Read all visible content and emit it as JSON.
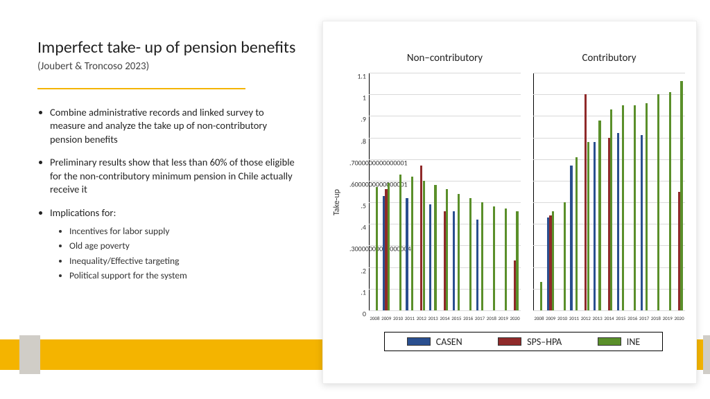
{
  "title": "Imperfect take- up of pension benefits",
  "subtitle": "(Joubert & Troncoso 2023)",
  "accent_color": "#f4b400",
  "bullets": [
    "Combine administrative records and linked survey to measure and analyze the take up of non-contributory pension benefits",
    "Preliminary results show that less than 60% of those eligible for the non-contributory minimum pension in Chile actually receive it",
    "Implications for:"
  ],
  "sub_bullets": [
    "Incentives for labor supply",
    "Old age poverty",
    "Inequality/Effective targeting",
    "Political support for the system"
  ],
  "chart": {
    "type": "grouped-bar-panels",
    "ylabel": "Take-up",
    "panel_titles": [
      "Non–contributory",
      "Contributory"
    ],
    "years": [
      "2008",
      "2009",
      "2010",
      "2011",
      "2012",
      "2013",
      "2014",
      "2015",
      "2016",
      "2017",
      "2018",
      "2019",
      "2020"
    ],
    "series": [
      {
        "name": "CASEN",
        "color": "#2a4f8f"
      },
      {
        "name": "SPS–HPA",
        "color": "#8f2a2a"
      },
      {
        "name": "INE",
        "color": "#5a8f2a"
      }
    ],
    "ylim": [
      0,
      1.1
    ],
    "ytick_step": 0.1,
    "grid_color": "#d9d9d9",
    "background_color": "#ffffff",
    "bar_group_gap": 0.35,
    "panels": [
      {
        "CASEN": [
          null,
          0.53,
          null,
          0.52,
          null,
          0.49,
          null,
          0.46,
          null,
          0.42,
          null,
          null,
          null
        ],
        "SPS-HPA": [
          null,
          0.56,
          null,
          null,
          0.67,
          null,
          0.46,
          null,
          null,
          null,
          null,
          null,
          0.23
        ],
        "INE": [
          0.57,
          0.59,
          0.63,
          0.62,
          0.6,
          0.58,
          0.56,
          0.54,
          0.52,
          0.5,
          0.48,
          0.47,
          0.46
        ]
      },
      {
        "CASEN": [
          null,
          0.43,
          null,
          0.67,
          null,
          0.78,
          null,
          0.82,
          null,
          0.81,
          null,
          null,
          null
        ],
        "SPS-HPA": [
          null,
          0.44,
          null,
          null,
          1.0,
          null,
          0.8,
          null,
          null,
          null,
          null,
          null,
          0.55
        ],
        "INE": [
          0.13,
          0.46,
          0.5,
          0.71,
          0.78,
          0.88,
          0.93,
          0.95,
          0.95,
          0.96,
          1.0,
          1.01,
          1.06
        ]
      }
    ],
    "legend_labels": [
      "CASEN",
      "SPS–HPA",
      "INE"
    ]
  }
}
